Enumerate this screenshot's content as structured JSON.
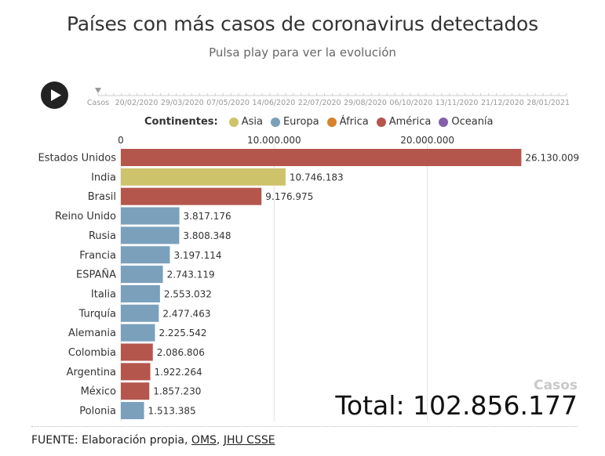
{
  "title": "Países con más casos de coronavirus detectados",
  "subtitle": "Pulsa play para ver la evolución",
  "timeline": {
    "start_label": "Casos",
    "dates": [
      "20/02/2020",
      "29/03/2020",
      "07/05/2020",
      "14/06/2020",
      "22/07/2020",
      "29/08/2020",
      "06/10/2020",
      "13/11/2020",
      "21/12/2020",
      "28/01/2021"
    ],
    "position": 0
  },
  "legend": {
    "title": "Continentes:",
    "items": [
      {
        "label": "Asia",
        "color": "#cdc36b"
      },
      {
        "label": "Europa",
        "color": "#7aa0bc"
      },
      {
        "label": "África",
        "color": "#d9812b"
      },
      {
        "label": "América",
        "color": "#b5564d"
      },
      {
        "label": "Oceanía",
        "color": "#8560a8"
      }
    ]
  },
  "chart_data": {
    "type": "bar",
    "orientation": "horizontal",
    "xlim": [
      0,
      30000000
    ],
    "ticks": [
      {
        "value": 0,
        "label": "0"
      },
      {
        "value": 10000000,
        "label": "10.000.000"
      },
      {
        "value": 20000000,
        "label": "20.000.000"
      }
    ],
    "categories": [
      "Estados Unidos",
      "India",
      "Brasil",
      "Reino Unido",
      "Rusia",
      "Francia",
      "ESPAÑA",
      "Italia",
      "Turquía",
      "Alemania",
      "Colombia",
      "Argentina",
      "México",
      "Polonia"
    ],
    "values": [
      26130009,
      10746183,
      9176975,
      3817176,
      3808348,
      3197114,
      2743119,
      2553032,
      2477463,
      2225542,
      2086806,
      1922264,
      1857230,
      1513385
    ],
    "value_labels": [
      "26.130.009",
      "10.746.183",
      "9.176.975",
      "3.817.176",
      "3.808.348",
      "3.197.114",
      "2.743.119",
      "2.553.032",
      "2.477.463",
      "2.225.542",
      "2.086.806",
      "1.922.264",
      "1.857.230",
      "1.513.385"
    ],
    "continents": [
      "América",
      "Asia",
      "América",
      "Europa",
      "Europa",
      "Europa",
      "Europa",
      "Europa",
      "Europa",
      "Europa",
      "América",
      "América",
      "América",
      "Europa"
    ],
    "grid": true
  },
  "summary": {
    "label": "Casos",
    "total": "Total: 102.856.177"
  },
  "footer": {
    "prefix": "FUENTE: Elaboración propia, ",
    "link1": "OMS",
    "separator": ", ",
    "link2": "JHU CSSE"
  }
}
